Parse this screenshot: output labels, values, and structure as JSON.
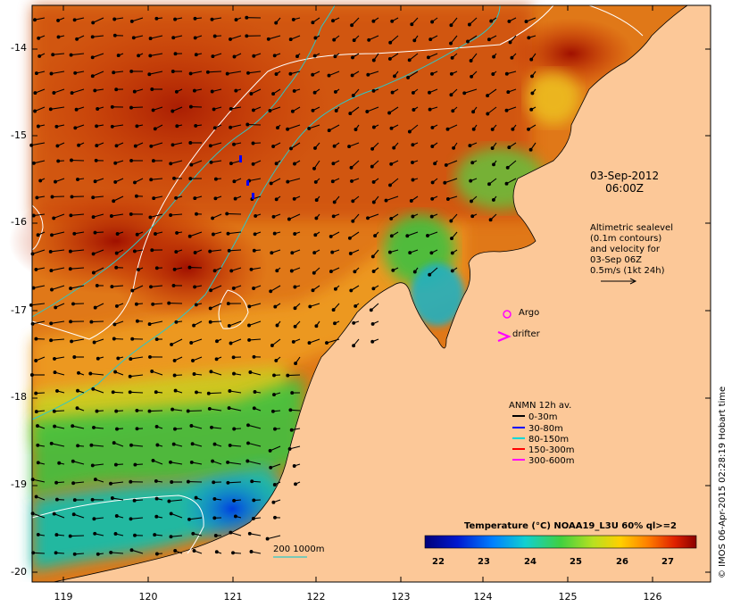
{
  "map": {
    "ylabels": [
      "-14",
      "-15",
      "-16",
      "-17",
      "-18",
      "-19",
      "-20"
    ],
    "xlabels": [
      "119",
      "120",
      "121",
      "122",
      "123",
      "124",
      "125",
      "126"
    ],
    "date_text": [
      "03-Sep-2012",
      "06:00Z"
    ],
    "altimetry_text": [
      "Altimetric sealevel",
      "(0.1m contours)",
      "and velocity for",
      "03-Sep 06Z",
      "0.5m/s (1kt 24h)"
    ],
    "argo_label": "Argo",
    "drifter_label": "drifter",
    "anmn_title": "ANMN 12h av.",
    "anmn_legend": [
      {
        "label": "0-30m",
        "color": "#000000"
      },
      {
        "label": "30-80m",
        "color": "#0000ff"
      },
      {
        "label": "80-150m",
        "color": "#00d8d8"
      },
      {
        "label": "150-300m",
        "color": "#ff0000"
      },
      {
        "label": "300-600m",
        "color": "#ff00ff"
      }
    ],
    "colorbar_title": "Temperature (°C) NOAA19_L3U 60% ql>=2",
    "colorbar_ticks": [
      "22",
      "23",
      "24",
      "25",
      "26",
      "27"
    ],
    "scale_label": "200  1000m",
    "credit": "© IMOS 06-Apr-2015 02:28:19 Hobart time",
    "colors": {
      "land": "#fcc898",
      "contour_isobath": "#2cc8c8",
      "contour_sealevel": "#ffffff"
    }
  }
}
